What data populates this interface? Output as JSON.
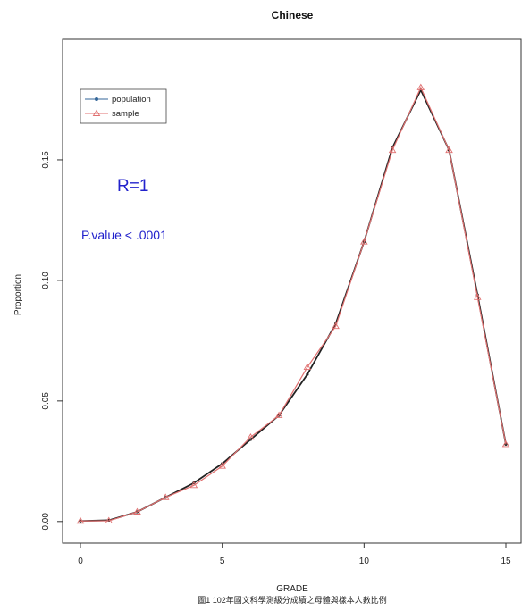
{
  "chart_data": {
    "type": "line",
    "title": "Chinese",
    "xlabel": "GRADE",
    "ylabel": "Proportion",
    "caption": "圖1 102年國文科學測級分成績之母體與樣本人數比例",
    "xlim": [
      -1,
      16
    ],
    "ylim": [
      -0.006,
      0.2
    ],
    "xticks": [
      0,
      5,
      10,
      15
    ],
    "yticks": [
      0.0,
      0.05,
      0.1,
      0.15
    ],
    "ytick_labels": [
      "0.00",
      "0.05",
      "0.10",
      "0.15"
    ],
    "grid": false,
    "legend_position": "top-left",
    "x": [
      0,
      1,
      2,
      3,
      4,
      5,
      6,
      7,
      8,
      9,
      10,
      11,
      12,
      13,
      14,
      15
    ],
    "series": [
      {
        "name": "population",
        "color": "#222222",
        "marker": "circle",
        "values": [
          0.0002,
          0.0005,
          0.004,
          0.01,
          0.016,
          0.024,
          0.034,
          0.044,
          0.061,
          0.082,
          0.116,
          0.155,
          0.179,
          0.154,
          0.094,
          0.032
        ]
      },
      {
        "name": "sample",
        "color": "#e07070",
        "marker": "triangle",
        "values": [
          0.0002,
          0.0003,
          0.004,
          0.01,
          0.015,
          0.023,
          0.035,
          0.044,
          0.064,
          0.081,
          0.116,
          0.154,
          0.18,
          0.154,
          0.093,
          0.032
        ]
      }
    ],
    "annotations": [
      {
        "text": "R=1",
        "style": "large"
      },
      {
        "text": "P.value < .0001",
        "style": "medium"
      }
    ]
  }
}
